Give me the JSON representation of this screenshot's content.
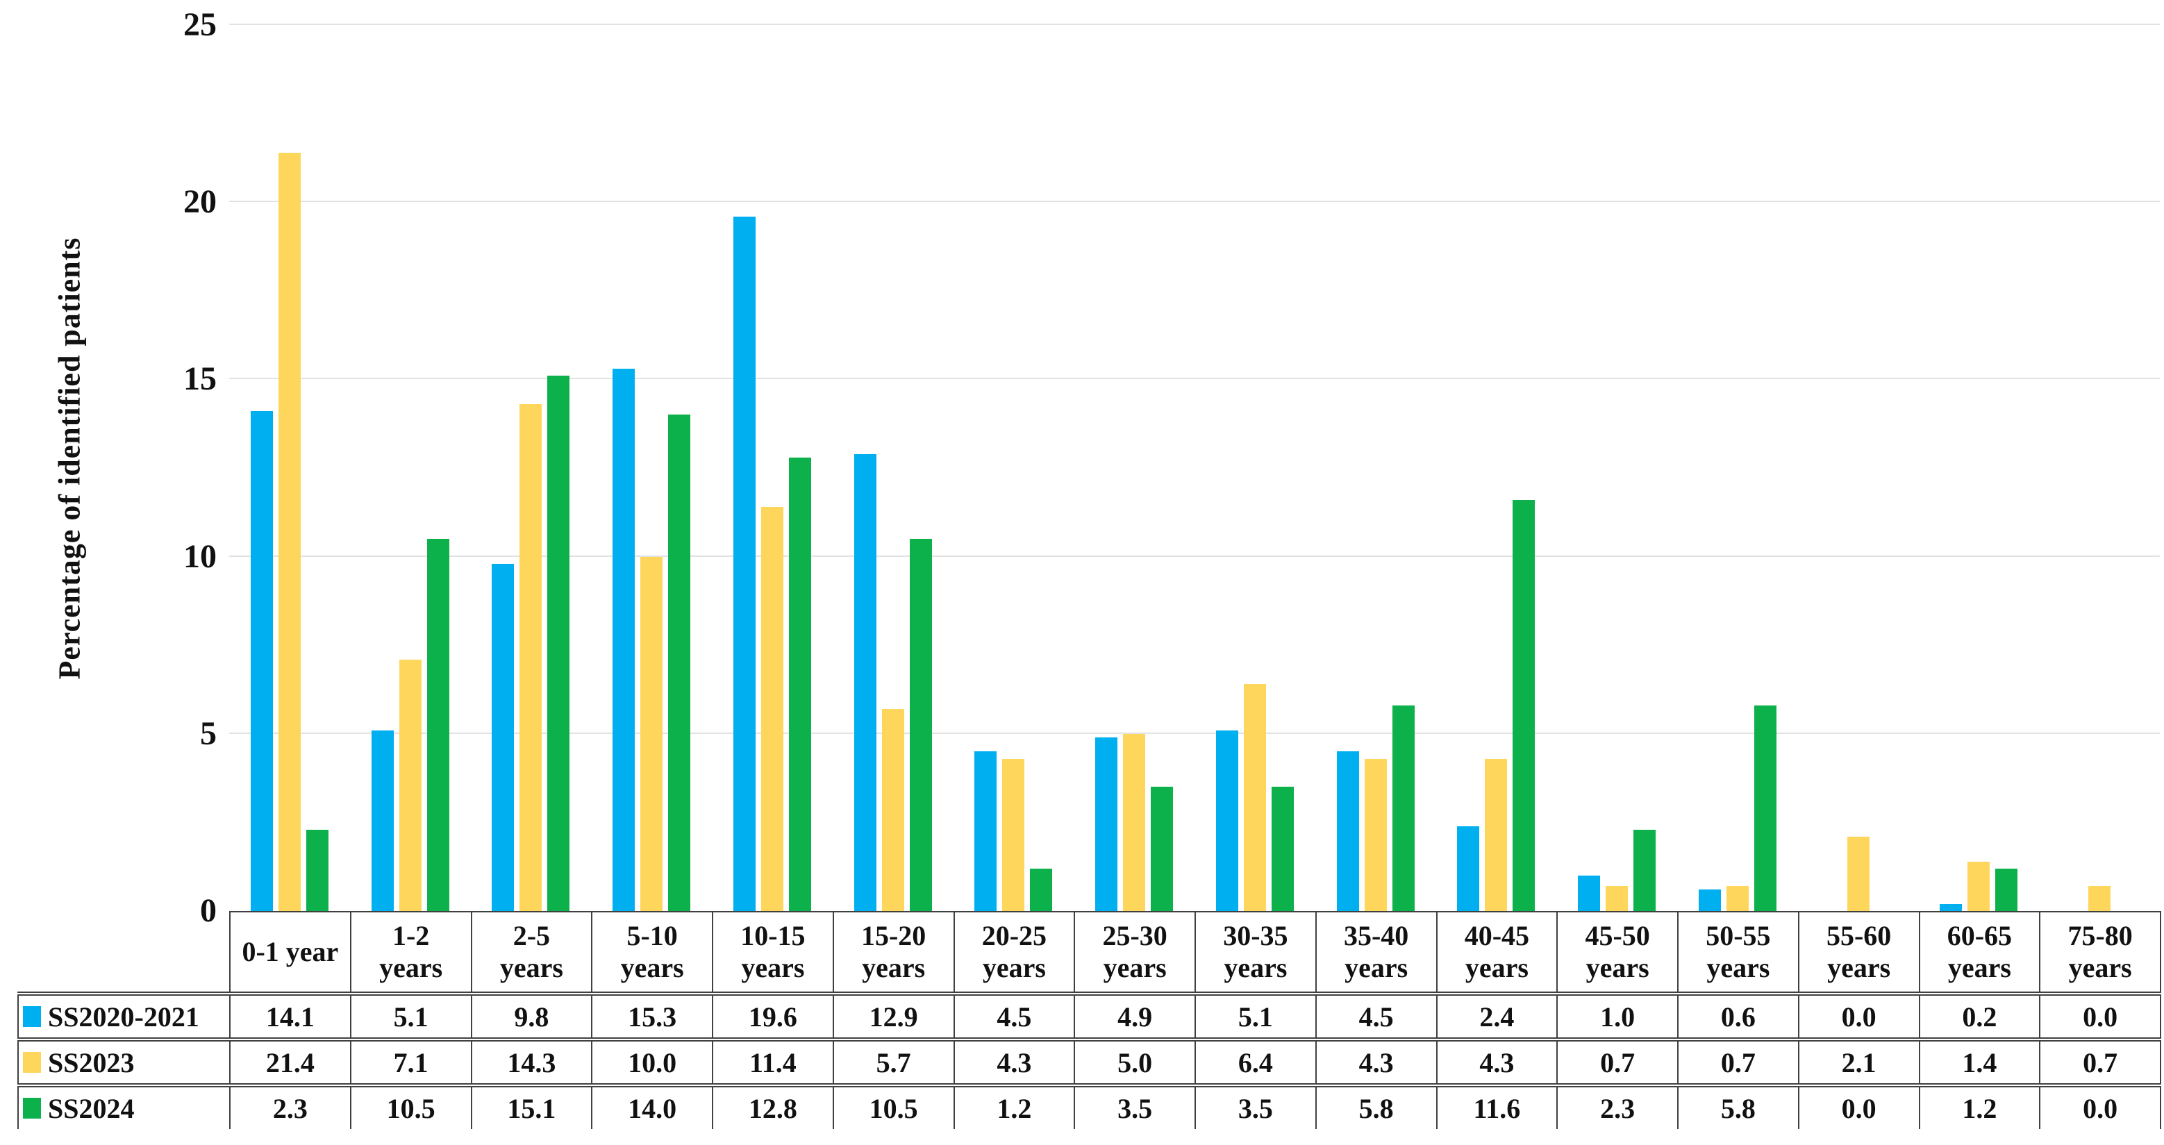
{
  "figure": {
    "y_axis": {
      "title": "Percentage of identified patients",
      "ticks": [
        "0",
        "5",
        "10",
        "15",
        "20",
        "25"
      ],
      "max": 25,
      "gridlines": [
        5,
        10,
        15,
        20,
        25
      ]
    }
  },
  "chart_data": {
    "type": "bar",
    "title": "",
    "xlabel": "",
    "ylabel": "Percentage of identified patients",
    "ylim": [
      0,
      25
    ],
    "y_tick_step": 5,
    "grid": true,
    "legend_position": "table-left-column",
    "categories": [
      "0-1 year",
      "1-2 years",
      "2-5 years",
      "5-10 years",
      "10-15 years",
      "15-20 years",
      "20-25 years",
      "25-30 years",
      "30-35 years",
      "35-40 years",
      "40-45 years",
      "45-50 years",
      "50-55 years",
      "55-60 years",
      "60-65 years",
      "75-80 years"
    ],
    "category_label_lines": [
      [
        "0-1 year"
      ],
      [
        "1-2",
        "years"
      ],
      [
        "2-5",
        "years"
      ],
      [
        "5-10",
        "years"
      ],
      [
        "10-15",
        "years"
      ],
      [
        "15-20",
        "years"
      ],
      [
        "20-25",
        "years"
      ],
      [
        "25-30",
        "years"
      ],
      [
        "30-35",
        "years"
      ],
      [
        "35-40",
        "years"
      ],
      [
        "40-45",
        "years"
      ],
      [
        "45-50",
        "years"
      ],
      [
        "50-55",
        "years"
      ],
      [
        "55-60",
        "years"
      ],
      [
        "60-65",
        "years"
      ],
      [
        "75-80",
        "years"
      ]
    ],
    "series": [
      {
        "name": "SS2020-2021",
        "color": "#00AFF0",
        "values": [
          14.1,
          5.1,
          9.8,
          15.3,
          19.6,
          12.9,
          4.5,
          4.9,
          5.1,
          4.5,
          2.4,
          1.0,
          0.6,
          0.0,
          0.2,
          0.0
        ]
      },
      {
        "name": "SS2023",
        "color": "#FFD65C",
        "values": [
          21.4,
          7.1,
          14.3,
          10.0,
          11.4,
          5.7,
          4.3,
          5.0,
          6.4,
          4.3,
          4.3,
          0.7,
          0.7,
          2.1,
          1.4,
          0.7
        ]
      },
      {
        "name": "SS2024",
        "color": "#0DB14B",
        "values": [
          2.3,
          10.5,
          15.1,
          14.0,
          12.8,
          10.5,
          1.2,
          3.5,
          3.5,
          5.8,
          11.6,
          2.3,
          5.8,
          0.0,
          1.2,
          0.0
        ]
      }
    ]
  }
}
